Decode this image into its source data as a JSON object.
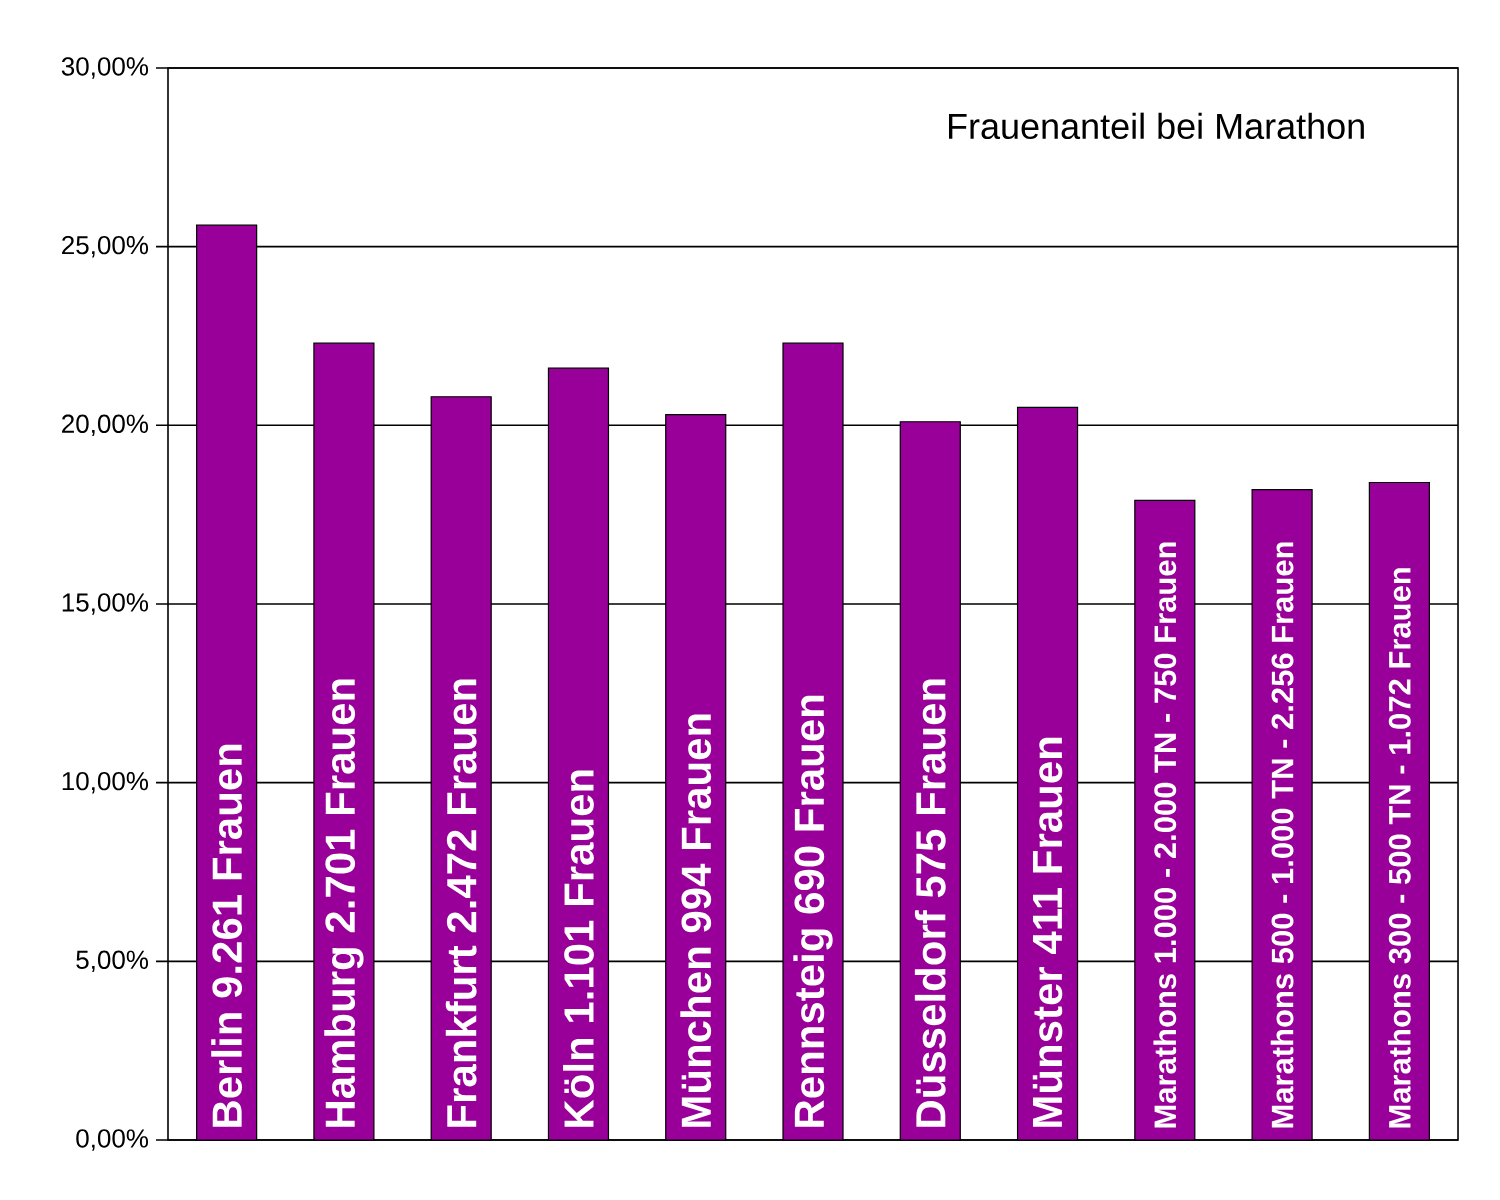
{
  "chart_data": {
    "type": "bar",
    "title": "Frauenanteil bei Marathon",
    "categories": [
      "Berlin 9.261 Frauen",
      "Hamburg 2.701 Frauen",
      "Frankfurt 2.472 Frauen",
      "Köln 1.101 Frauen",
      "München 994 Frauen",
      "Rennsteig 690 Frauen",
      "Düsseldorf 575 Frauen",
      "Münster 411 Frauen",
      "Marathons 1.000 - 2.000 TN - 750 Frauen",
      "Marathons 500 - 1.000 TN - 2.256 Frauen",
      "Marathons 300 - 500 TN - 1.072 Frauen"
    ],
    "values": [
      25.6,
      22.3,
      20.8,
      21.6,
      20.3,
      22.3,
      20.1,
      20.5,
      17.9,
      18.2,
      18.4
    ],
    "color": "#990099",
    "ylim": [
      0,
      30
    ],
    "yticks": [
      {
        "value": 0,
        "label": "0,00%"
      },
      {
        "value": 5,
        "label": "5,00%"
      },
      {
        "value": 10,
        "label": "10,00%"
      },
      {
        "value": 15,
        "label": "15,00%"
      },
      {
        "value": 20,
        "label": "20,00%"
      },
      {
        "value": 25,
        "label": "25,00%"
      },
      {
        "value": 30,
        "label": "30,00%"
      }
    ],
    "grid": "y"
  }
}
